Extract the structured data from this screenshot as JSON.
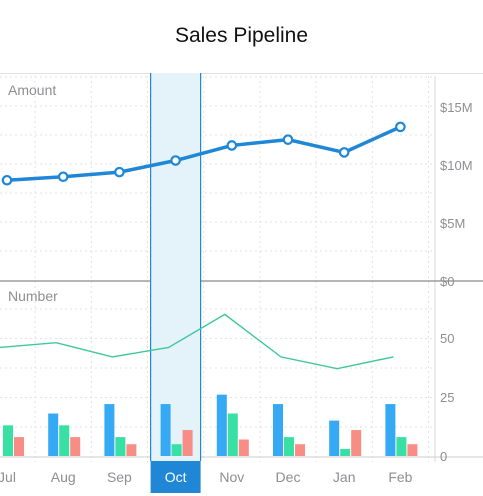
{
  "header": {
    "title": "Sales Pipeline"
  },
  "chart_data": {
    "type": "line+bar",
    "categories": [
      "Jul",
      "Aug",
      "Sep",
      "Oct",
      "Nov",
      "Dec",
      "Jan",
      "Feb"
    ],
    "selected_category": "Oct",
    "amount_panel": {
      "label": "Amount",
      "y_ticks": [
        "$15M",
        "$10M",
        "$5M",
        "$0"
      ],
      "ylim": [
        0,
        15000000
      ],
      "values": [
        8600000,
        8900000,
        9300000,
        10300000,
        11600000,
        12100000,
        11000000,
        13200000
      ],
      "color": "#1f87d6"
    },
    "number_panel": {
      "label": "Number",
      "y_ticks": [
        "50",
        "25",
        "0"
      ],
      "ylim": [
        0,
        50
      ],
      "line_values": [
        46,
        48,
        42,
        46,
        60,
        42,
        37,
        42
      ],
      "line_color": "#3ec89a",
      "bar_series": [
        {
          "color": "#35a9f4",
          "values": [
            null,
            18,
            22,
            22,
            26,
            22,
            15,
            22
          ]
        },
        {
          "color": "#38e0a4",
          "values": [
            13,
            13,
            8,
            5,
            18,
            8,
            3,
            8
          ]
        },
        {
          "color": "#f88d86",
          "values": [
            8,
            8,
            5,
            11,
            7,
            5,
            11,
            5
          ]
        }
      ]
    }
  }
}
